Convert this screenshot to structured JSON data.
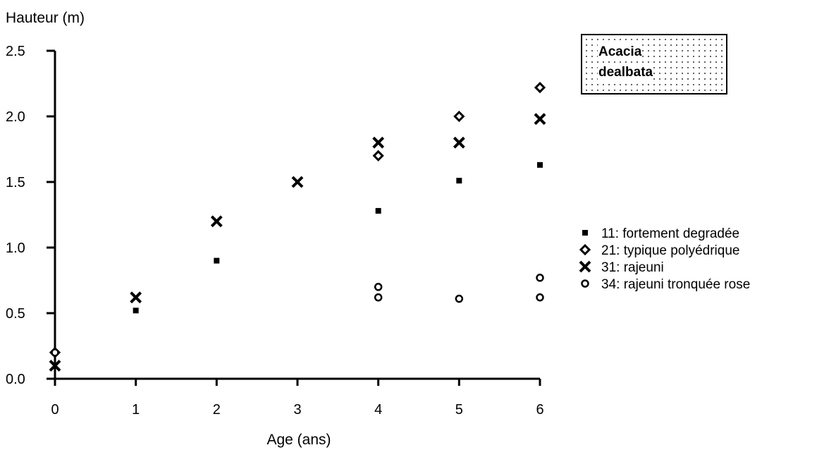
{
  "chart_data": {
    "type": "scatter",
    "title": "",
    "ylabel": "Hauteur (m)",
    "xlabel": "Age (ans)",
    "xlim": [
      0,
      6
    ],
    "ylim": [
      0,
      2.5
    ],
    "xticks": [
      "0",
      "1",
      "2",
      "3",
      "4",
      "5",
      "6"
    ],
    "yticks": [
      "0.0",
      "0.5",
      "1.0",
      "1.5",
      "2.0",
      "2.5"
    ],
    "grid": false,
    "legend_position": "right",
    "annotation_box": [
      "Acacia",
      "dealbata"
    ],
    "series": [
      {
        "name": "11: fortement degradée",
        "marker": "square",
        "points": [
          [
            1,
            0.52
          ],
          [
            2,
            0.9
          ],
          [
            4,
            1.28
          ],
          [
            5,
            1.51
          ],
          [
            6,
            1.63
          ]
        ]
      },
      {
        "name": "21: typique polyédrique",
        "marker": "diamond",
        "points": [
          [
            0,
            0.2
          ],
          [
            4,
            1.7
          ],
          [
            5,
            2.0
          ],
          [
            6,
            2.22
          ]
        ]
      },
      {
        "name": "31: rajeuni",
        "marker": "x",
        "points": [
          [
            0,
            0.1
          ],
          [
            1,
            0.62
          ],
          [
            2,
            1.2
          ],
          [
            3,
            1.5
          ],
          [
            4,
            1.8
          ],
          [
            5,
            1.8
          ],
          [
            6,
            1.98
          ]
        ]
      },
      {
        "name": "34: rajeuni tronquée rose",
        "marker": "circle",
        "points": [
          [
            0,
            0.2
          ],
          [
            4,
            0.7
          ],
          [
            4,
            0.62
          ],
          [
            5,
            0.61
          ],
          [
            6,
            0.77
          ],
          [
            6,
            0.62
          ]
        ]
      }
    ]
  }
}
